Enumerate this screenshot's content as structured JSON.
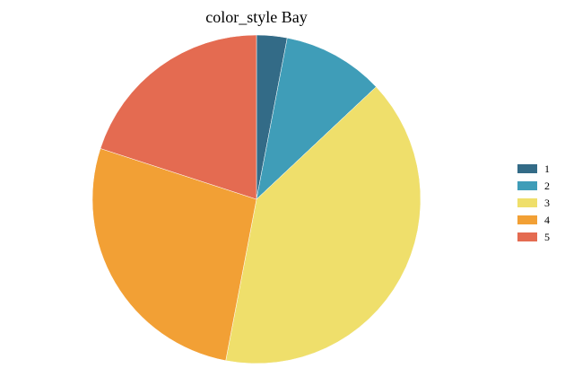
{
  "chart_data": {
    "type": "pie",
    "title": "color_style Bay",
    "categories": [
      "1",
      "2",
      "3",
      "4",
      "5"
    ],
    "values": [
      3,
      10,
      40,
      27,
      20
    ],
    "colors": [
      "#336b87",
      "#3f9db8",
      "#efdf6b",
      "#f2a035",
      "#e46b51"
    ],
    "legend": "right",
    "start_angle_deg": 0,
    "direction": "clockwise"
  }
}
